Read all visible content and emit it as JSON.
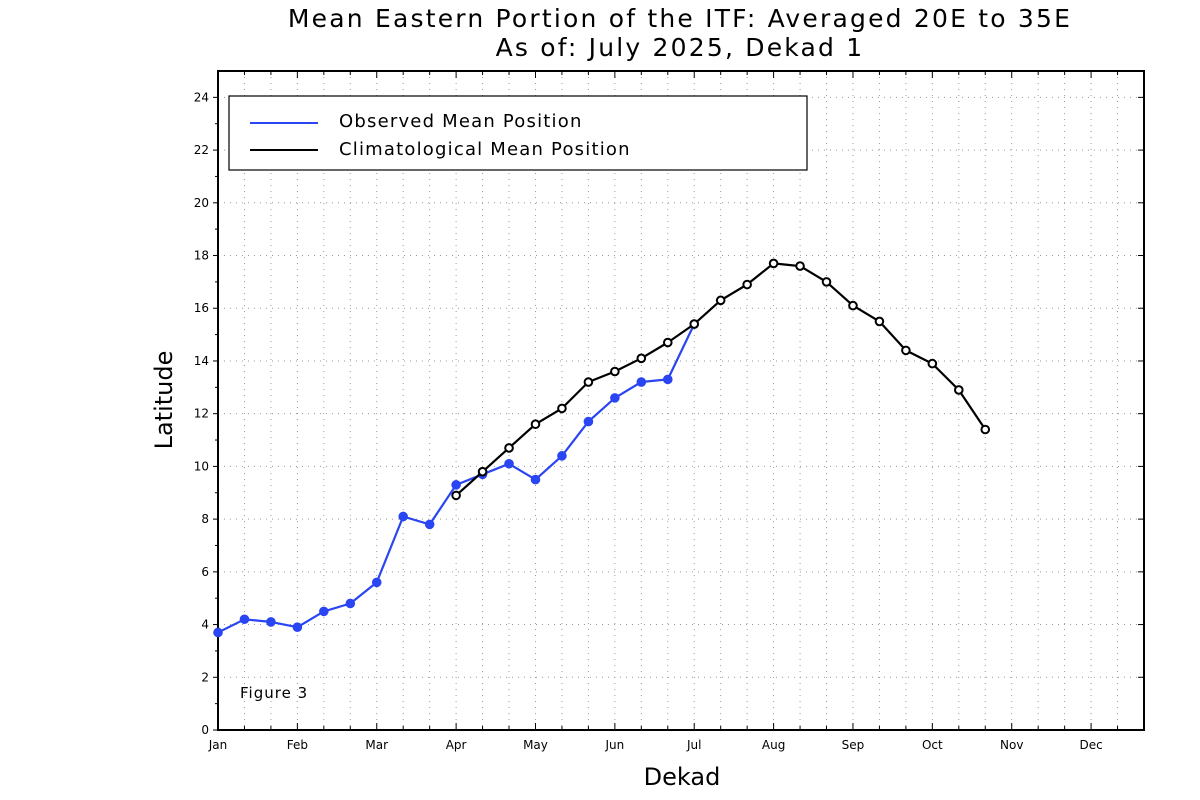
{
  "chart_data": {
    "type": "line",
    "title": "Mean Eastern Portion of the ITF: Averaged 20E to 35E",
    "subtitle": "As of: July 2025, Dekad 1",
    "xlabel": "Dekad",
    "ylabel": "Latitude",
    "ylim": [
      0,
      25
    ],
    "xlim": [
      0,
      35
    ],
    "x_tick_labels": [
      "Jan",
      "Feb",
      "Mar",
      "Apr",
      "May",
      "Jun",
      "Jul",
      "Aug",
      "Sep",
      "Oct",
      "Nov",
      "Dec"
    ],
    "y_ticks": [
      0,
      2,
      4,
      6,
      8,
      10,
      12,
      14,
      16,
      18,
      20,
      22,
      24
    ],
    "grid": true,
    "legend_position": "top-left",
    "annotation": "Figure 3",
    "series": [
      {
        "name": "Observed Mean Position",
        "color": "#2a45f2",
        "marker": "filled-circle",
        "x": [
          0,
          1,
          2,
          3,
          4,
          5,
          6,
          7,
          8,
          9,
          10,
          11,
          12,
          13,
          14,
          15,
          16,
          17,
          18
        ],
        "values": [
          3.7,
          4.2,
          4.1,
          3.9,
          4.5,
          4.8,
          5.6,
          8.1,
          7.8,
          9.3,
          9.7,
          10.1,
          9.5,
          10.4,
          11.7,
          12.6,
          13.2,
          13.3,
          15.4
        ]
      },
      {
        "name": "Climatological Mean Position",
        "color": "#000000",
        "marker": "open-circle",
        "x": [
          9,
          10,
          11,
          12,
          13,
          14,
          15,
          16,
          17,
          18,
          19,
          20,
          21,
          22,
          23,
          24,
          25,
          26,
          27,
          28,
          29
        ],
        "values": [
          8.9,
          9.8,
          10.7,
          11.6,
          12.2,
          13.2,
          13.6,
          14.1,
          14.7,
          15.4,
          16.3,
          16.9,
          17.7,
          17.6,
          17.0,
          16.1,
          15.5,
          14.4,
          13.9,
          12.9,
          11.4
        ]
      }
    ]
  }
}
